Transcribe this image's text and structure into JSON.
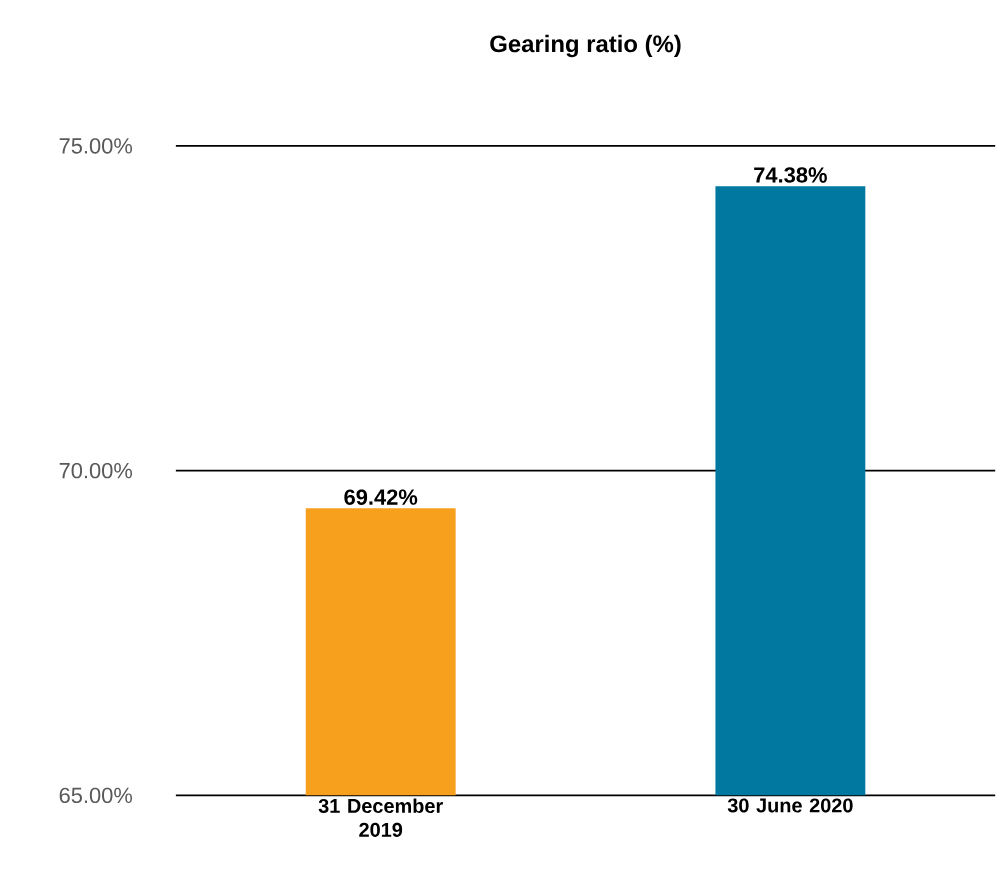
{
  "chart_data": {
    "type": "bar",
    "title": "Gearing ratio (%)",
    "categories": [
      "31 December 2019",
      "30 June 2020"
    ],
    "values": [
      69.42,
      74.38
    ],
    "colors": [
      "#f7a01e",
      "#00789f"
    ],
    "value_labels": [
      "69.42%",
      "74.38%"
    ],
    "ylim": [
      65,
      75
    ],
    "yticks": [
      {
        "value": 65,
        "label": "65.00%"
      },
      {
        "value": 70,
        "label": "70.00%"
      },
      {
        "value": 75,
        "label": "75.00%"
      }
    ],
    "grid": "y"
  }
}
